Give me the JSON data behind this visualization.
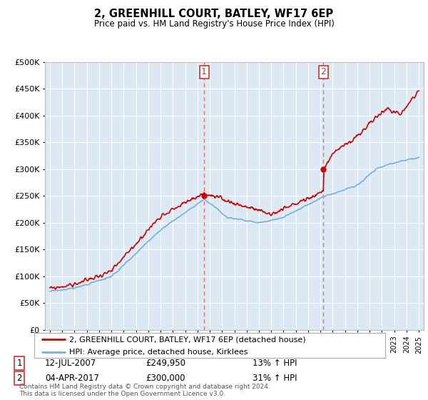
{
  "title": "2, GREENHILL COURT, BATLEY, WF17 6EP",
  "subtitle": "Price paid vs. HM Land Registry's House Price Index (HPI)",
  "legend_line1": "2, GREENHILL COURT, BATLEY, WF17 6EP (detached house)",
  "legend_line2": "HPI: Average price, detached house, Kirklees",
  "annotation1_date": "12-JUL-2007",
  "annotation1_price": "£249,950",
  "annotation1_hpi": "13% ↑ HPI",
  "annotation2_date": "04-APR-2017",
  "annotation2_price": "£300,000",
  "annotation2_hpi": "31% ↑ HPI",
  "footer": "Contains HM Land Registry data © Crown copyright and database right 2024.\nThis data is licensed under the Open Government Licence v3.0.",
  "ylim": [
    0,
    500000
  ],
  "yticks": [
    0,
    50000,
    100000,
    150000,
    200000,
    250000,
    300000,
    350000,
    400000,
    450000,
    500000
  ],
  "sale1_x": 2007.54,
  "sale1_y": 249950,
  "sale2_x": 2017.25,
  "sale2_y": 300000,
  "house_color": "#cc0000",
  "hpi_color": "#7aafd4",
  "bg_color": "#dce9f5",
  "plot_bg": "#ffffff",
  "vline_color": "#e87070",
  "xlim_left": 1994.6,
  "xlim_right": 2025.4
}
